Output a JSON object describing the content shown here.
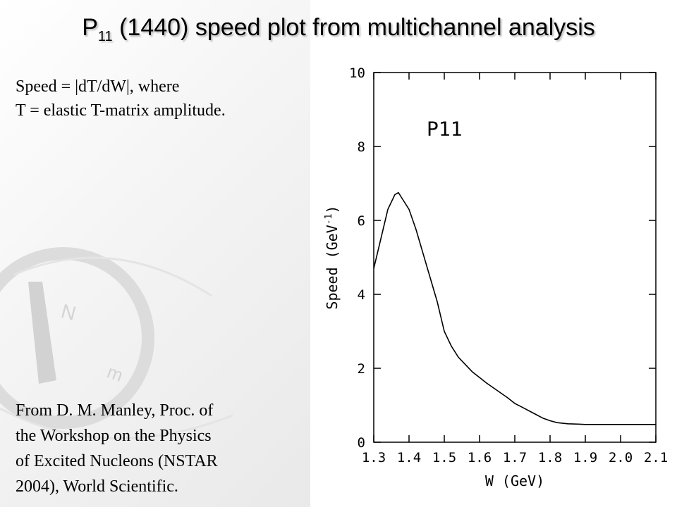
{
  "slide": {
    "title_main": "P",
    "title_sub": "11",
    "title_rest": " (1440) speed plot from multichannel analysis",
    "desc_line1": "Speed = |dT/dW|,  where",
    "desc_line2": "T = elastic T-matrix amplitude.",
    "source_lines": [
      "From D. M. Manley, Proc. of",
      "the Workshop on the Physics",
      "of Excited Nucleons (NSTAR",
      "2004), World Scientific."
    ]
  },
  "chart_data": {
    "type": "line",
    "title": "P11",
    "xlabel": "W (GeV)",
    "ylabel_main": "Speed (GeV",
    "ylabel_sup": "-1",
    "ylabel_close": ")",
    "xlim": [
      1.3,
      2.1
    ],
    "ylim": [
      0,
      10
    ],
    "xticks": [
      1.3,
      1.4,
      1.5,
      1.6,
      1.7,
      1.8,
      1.9,
      2.0,
      2.1
    ],
    "xtick_labels": [
      "1.3",
      "1.4",
      "1.5",
      "1.6",
      "1.7",
      "1.8",
      "1.9",
      "2.0",
      "2.1"
    ],
    "yticks": [
      0,
      2,
      4,
      6,
      8,
      10
    ],
    "ytick_labels": [
      "0",
      "2",
      "4",
      "6",
      "8",
      "10"
    ],
    "grid": false,
    "series": [
      {
        "x": [
          1.3,
          1.32,
          1.34,
          1.36,
          1.37,
          1.38,
          1.4,
          1.42,
          1.44,
          1.46,
          1.48,
          1.5,
          1.52,
          1.54,
          1.56,
          1.58,
          1.6,
          1.62,
          1.65,
          1.68,
          1.7,
          1.72,
          1.75,
          1.78,
          1.8,
          1.82,
          1.85,
          1.88,
          1.9,
          1.95,
          2.0,
          2.05,
          2.1
        ],
        "y": [
          4.7,
          5.5,
          6.3,
          6.7,
          6.75,
          6.6,
          6.3,
          5.75,
          5.1,
          4.45,
          3.8,
          3.0,
          2.6,
          2.3,
          2.1,
          1.9,
          1.75,
          1.6,
          1.4,
          1.2,
          1.05,
          0.95,
          0.8,
          0.65,
          0.58,
          0.53,
          0.5,
          0.49,
          0.48,
          0.48,
          0.48,
          0.48,
          0.48
        ]
      }
    ]
  },
  "colors": {
    "text": "#000000",
    "curve": "#000000",
    "title_shadow": "#b9b9b9"
  }
}
